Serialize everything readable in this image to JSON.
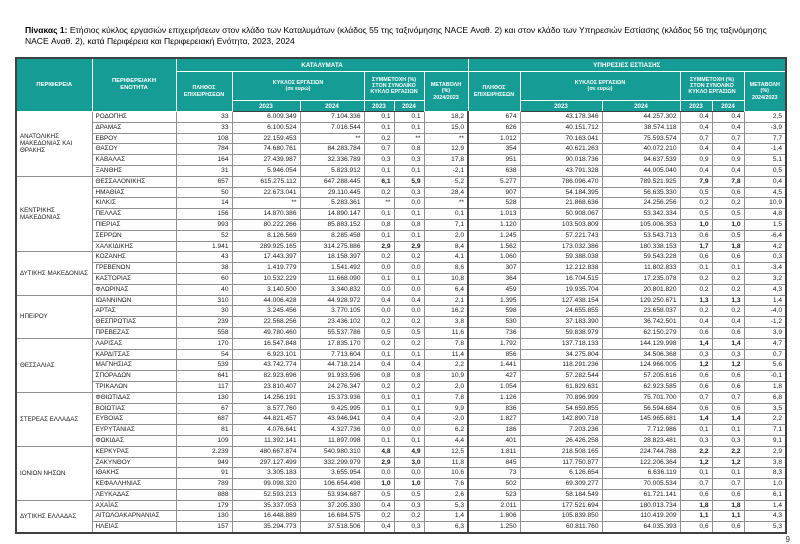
{
  "title": {
    "label": "Πίνακας 1:",
    "text": " Ετήσιος κύκλος εργασιών επιχειρήσεων στον κλάδο των Καταλυμάτων (κλάδος 55 της ταξινόμησης NACE Αναθ. 2) και στον κλάδο των Υπηρεσιών Εστίασης (κλάδος 56 της ταξινόμησης NACE Αναθ. 2), κατά Περιφέρεια και Περιφερειακή Ενότητα, 2023, 2024"
  },
  "page_number": "9",
  "accent_color": "#149c95",
  "table": {
    "headers": {
      "region": "ΠΕΡΙΦΕΡΕΙΑ",
      "unit": "ΠΕΡΙΦΕΡΕΙΑΚΗ\nΕΝΟΤΗΤΑ",
      "group_accommodation": "ΚΑΤΑΛΥΜΑΤΑ",
      "group_food": "ΥΠΗΡΕΣΙΕΣ ΕΣΤΙΑΣΗΣ",
      "count": "ΠΛΗΘΟΣ\nΕΠΙΧΕΙΡΗΣΕΩΝ",
      "turnover": "ΚΥΚΛΟΣ ΕΡΓΑΣΙΩΝ\n(σε ευρώ)",
      "share": "ΣΥΜΜΕΤΟΧΗ (%)\nΣΤΟΝ ΣΥΝΟΛΙΚΟ\nΚΥΚΛΟ ΕΡΓΑΣΙΩΝ",
      "change": "ΜΕΤΑΒΟΛΗ\n(%)\n2024/2023",
      "y2023": "2023",
      "y2024": "2024"
    },
    "groups": [
      {
        "region": "ΑΝΑΤΟΛΙΚΗΣ ΜΑΚΕΔΟΝΙΑΣ ΚΑΙ ΘΡΑΚΗΣ",
        "rows": [
          {
            "unit": "ΡΟΔΟΠΗΣ",
            "acc": [
              "33",
              "6.009.349",
              "7.104.336",
              "0,1",
              "0,1",
              "18,2"
            ],
            "food": [
              "674",
              "43.178.346",
              "44.257.302",
              "0,4",
              "0,4",
              "2,5"
            ]
          },
          {
            "unit": "ΔΡΑΜΑΣ",
            "acc": [
              "33",
              "6.100.524",
              "7.016.544",
              "0,1",
              "0,1",
              "15,0"
            ],
            "food": [
              "626",
              "40.151.712",
              "38.574.118",
              "0,4",
              "0,4",
              "-3,9"
            ]
          },
          {
            "unit": "ΕΒΡΟΥ",
            "acc": [
              "108",
              "22.159.453",
              "**",
              "0,2",
              "**",
              "**"
            ],
            "food": [
              "1.012",
              "70.163.041",
              "75.593.574",
              "0,7",
              "0,7",
              "7,7"
            ]
          },
          {
            "unit": "ΘΑΣΟΥ",
            "acc": [
              "784",
              "74.680.761",
              "84.283.784",
              "0,7",
              "0,8",
              "12,9"
            ],
            "food": [
              "354",
              "40.621.263",
              "40.072.210",
              "0,4",
              "0,4",
              "-1,4"
            ]
          },
          {
            "unit": "ΚΑΒΑΛΑΣ",
            "acc": [
              "164",
              "27.439.987",
              "32.336.789",
              "0,3",
              "0,3",
              "17,8"
            ],
            "food": [
              "951",
              "90.018.736",
              "94.637.539",
              "0,9",
              "0,9",
              "5,1"
            ]
          },
          {
            "unit": "ΞΑΝΘΗΣ",
            "acc": [
              "31",
              "5.946.054",
              "5.823.912",
              "0,1",
              "0,1",
              "-2,1"
            ],
            "food": [
              "638",
              "43.791.328",
              "44.005.040",
              "0,4",
              "0,4",
              "0,5"
            ]
          }
        ]
      },
      {
        "region": "ΚΕΝΤΡΙΚΗΣ ΜΑΚΕΔΟΝΙΑΣ",
        "rows": [
          {
            "unit": "ΘΕΣΣΑΛΟΝΙΚΗΣ",
            "acc": [
              "657",
              "615.275.112",
              "647.288.445",
              "6,1",
              "5,9",
              "5,2"
            ],
            "food": [
              "5.277",
              "786.096.470",
              "789.521.925",
              "7,9",
              "7,8",
              "0,4"
            ]
          },
          {
            "unit": "ΗΜΑΘΙΑΣ",
            "acc": [
              "50",
              "22.673.041",
              "29.110.445",
              "0,2",
              "0,3",
              "28,4"
            ],
            "food": [
              "907",
              "54.184.395",
              "56.635.330",
              "0,5",
              "0,6",
              "4,5"
            ]
          },
          {
            "unit": "ΚΙΛΚΙΣ",
            "acc": [
              "14",
              "**",
              "5.283.361",
              "**",
              "0,0",
              "**"
            ],
            "food": [
              "528",
              "21.868.636",
              "24.256.256",
              "0,2",
              "0,2",
              "10,9"
            ]
          },
          {
            "unit": "ΠΕΛΛΑΣ",
            "acc": [
              "156",
              "14.870.386",
              "14.890.147",
              "0,1",
              "0,1",
              "0,1"
            ],
            "food": [
              "1.013",
              "50.908.067",
              "53.342.334",
              "0,5",
              "0,5",
              "4,8"
            ]
          },
          {
            "unit": "ΠΙΕΡΙΑΣ",
            "acc": [
              "993",
              "80.222.266",
              "85.883.152",
              "0,8",
              "0,8",
              "7,1"
            ],
            "food": [
              "1.120",
              "103.503.809",
              "105.006.353",
              "1,0",
              "1,0",
              "1,5"
            ]
          },
          {
            "unit": "ΣΕΡΡΩΝ",
            "acc": [
              "52",
              "8.126.569",
              "8.285.458",
              "0,1",
              "0,1",
              "2,0"
            ],
            "food": [
              "1.245",
              "57.221.743",
              "53.543.713",
              "0,6",
              "0,5",
              "-6,4"
            ]
          },
          {
            "unit": "ΧΑΛΚΙΔΙΚΗΣ",
            "acc": [
              "1.941",
              "289.925.165",
              "314.275.886",
              "2,9",
              "2,9",
              "8,4"
            ],
            "food": [
              "1.562",
              "173.032.386",
              "180.338.153",
              "1,7",
              "1,8",
              "4,2"
            ]
          }
        ]
      },
      {
        "region": "ΔΥΤΙΚΗΣ ΜΑΚΕΔΟΝΙΑΣ",
        "rows": [
          {
            "unit": "ΚΟΖΑΝΗΣ",
            "acc": [
              "43",
              "17.443.397",
              "18.158.397",
              "0,2",
              "0,2",
              "4,1"
            ],
            "food": [
              "1.060",
              "59.388.038",
              "59.543.228",
              "0,6",
              "0,6",
              "0,3"
            ]
          },
          {
            "unit": "ΓΡΕΒΕΝΩΝ",
            "acc": [
              "38",
              "1.419.779",
              "1.541.492",
              "0,0",
              "0,0",
              "8,6"
            ],
            "food": [
              "307",
              "12.212.838",
              "11.802.833",
              "0,1",
              "0,1",
              "-3,4"
            ]
          },
          {
            "unit": "ΚΑΣΤΟΡΙΑΣ",
            "acc": [
              "60",
              "10.532.229",
              "11.668.090",
              "0,1",
              "0,1",
              "10,8"
            ],
            "food": [
              "364",
              "16.704.515",
              "17.235.078",
              "0,2",
              "0,2",
              "3,2"
            ]
          },
          {
            "unit": "ΦΛΩΡΙΝΑΣ",
            "acc": [
              "40",
              "3.140.500",
              "3.340.832",
              "0,0",
              "0,0",
              "6,4"
            ],
            "food": [
              "459",
              "19.935.704",
              "20.801.820",
              "0,2",
              "0,2",
              "4,3"
            ]
          }
        ]
      },
      {
        "region": "ΗΠΕΙΡΟΥ",
        "rows": [
          {
            "unit": "ΙΩΑΝΝΙΝΩΝ",
            "acc": [
              "310",
              "44.006.428",
              "44.928.972",
              "0,4",
              "0,4",
              "2,1"
            ],
            "food": [
              "1.395",
              "127.438.154",
              "129.250.671",
              "1,3",
              "1,3",
              "1,4"
            ]
          },
          {
            "unit": "ΑΡΤΑΣ",
            "acc": [
              "30",
              "3.245.456",
              "3.770.105",
              "0,0",
              "0,0",
              "16,2"
            ],
            "food": [
              "598",
              "24.655.855",
              "23.658.037",
              "0,2",
              "0,2",
              "-4,0"
            ]
          },
          {
            "unit": "ΘΕΣΠΡΩΤΙΑΣ",
            "acc": [
              "239",
              "22.568.256",
              "23.436.102",
              "0,2",
              "0,2",
              "3,8"
            ],
            "food": [
              "530",
              "37.183.390",
              "36.742.501",
              "0,4",
              "0,4",
              "-1,2"
            ]
          },
          {
            "unit": "ΠΡΕΒΕΖΑΣ",
            "acc": [
              "558",
              "49.780.460",
              "55.537.786",
              "0,5",
              "0,5",
              "11,6"
            ],
            "food": [
              "736",
              "59.838.979",
              "62.150.279",
              "0,6",
              "0,6",
              "3,9"
            ]
          }
        ]
      },
      {
        "region": "ΘΕΣΣΑΛΙΑΣ",
        "rows": [
          {
            "unit": "ΛΑΡΙΣΑΣ",
            "acc": [
              "170",
              "16.547.848",
              "17.835.170",
              "0,2",
              "0,2",
              "7,8"
            ],
            "food": [
              "1.792",
              "137.718.133",
              "144.129.998",
              "1,4",
              "1,4",
              "4,7"
            ]
          },
          {
            "unit": "ΚΑΡΔΙΤΣΑΣ",
            "acc": [
              "54",
              "6.923.101",
              "7.713.604",
              "0,1",
              "0,1",
              "11,4"
            ],
            "food": [
              "856",
              "34.275.804",
              "34.506.368",
              "0,3",
              "0,3",
              "0,7"
            ]
          },
          {
            "unit": "ΜΑΓΝΗΣΙΑΣ",
            "acc": [
              "539",
              "43.742.774",
              "44.718.214",
              "0,4",
              "0,4",
              "2,2"
            ],
            "food": [
              "1.441",
              "118.291.236",
              "124.966.005",
              "1,2",
              "1,2",
              "5,6"
            ]
          },
          {
            "unit": "ΣΠΟΡΑΔΩΝ",
            "acc": [
              "641",
              "82.923.696",
              "91.933.596",
              "0,8",
              "0,8",
              "10,9"
            ],
            "food": [
              "427",
              "57.282.544",
              "57.205.616",
              "0,6",
              "0,6",
              "-0,1"
            ]
          },
          {
            "unit": "ΤΡΙΚΑΛΩΝ",
            "acc": [
              "117",
              "23.810.407",
              "24.276.347",
              "0,2",
              "0,2",
              "2,0"
            ],
            "food": [
              "1.054",
              "61.829.631",
              "62.923.585",
              "0,6",
              "0,6",
              "1,8"
            ]
          }
        ]
      },
      {
        "region": "ΣΤΕΡΕΑΣ ΕΛΛΑΔΑΣ",
        "rows": [
          {
            "unit": "ΦΘΙΩΤΙΔΑΣ",
            "acc": [
              "130",
              "14.256.191",
              "15.373.936",
              "0,1",
              "0,1",
              "7,8"
            ],
            "food": [
              "1.126",
              "70.896.999",
              "75.701.700",
              "0,7",
              "0,7",
              "6,8"
            ]
          },
          {
            "unit": "ΒΟΙΩΤΙΑΣ",
            "acc": [
              "67",
              "8.577.760",
              "9.425.995",
              "0,1",
              "0,1",
              "9,9"
            ],
            "food": [
              "836",
              "54.659.855",
              "56.594.684",
              "0,6",
              "0,6",
              "3,5"
            ]
          },
          {
            "unit": "ΕΥΒΟΙΑΣ",
            "acc": [
              "687",
              "44.821.457",
              "43.946.941",
              "0,4",
              "0,4",
              "-2,0"
            ],
            "food": [
              "1.827",
              "142.890.718",
              "145.965.681",
              "1,4",
              "1,4",
              "2,2"
            ]
          },
          {
            "unit": "ΕΥΡΥΤΑΝΙΑΣ",
            "acc": [
              "81",
              "4.076.641",
              "4.327.736",
              "0,0",
              "0,0",
              "6,2"
            ],
            "food": [
              "186",
              "7.203.236",
              "7.712.986",
              "0,1",
              "0,1",
              "7,1"
            ]
          },
          {
            "unit": "ΦΩΚΙΔΑΣ",
            "acc": [
              "109",
              "11.392.141",
              "11.897.098",
              "0,1",
              "0,1",
              "4,4"
            ],
            "food": [
              "401",
              "26.426.258",
              "28.823.481",
              "0,3",
              "0,3",
              "9,1"
            ]
          }
        ]
      },
      {
        "region": "ΙΟΝΙΩΝ ΝΗΣΩΝ",
        "rows": [
          {
            "unit": "ΚΕΡΚΥΡΑΣ",
            "acc": [
              "2.239",
              "480.667.874",
              "540.980.310",
              "4,8",
              "4,9",
              "12,5"
            ],
            "food": [
              "1.811",
              "218.508.165",
              "224.744.788",
              "2,2",
              "2,2",
              "2,9"
            ]
          },
          {
            "unit": "ΖΑΚΥΝΘΟΥ",
            "acc": [
              "949",
              "297.127.499",
              "332.299.979",
              "2,9",
              "3,0",
              "11,8"
            ],
            "food": [
              "845",
              "117.750.877",
              "122.206.364",
              "1,2",
              "1,2",
              "3,8"
            ]
          },
          {
            "unit": "ΙΘΑΚΗΣ",
            "acc": [
              "91",
              "3.305.183",
              "3.655.954",
              "0,0",
              "0,0",
              "10,6"
            ],
            "food": [
              "73",
              "6.126.654",
              "6.636.119",
              "0,1",
              "0,1",
              "8,3"
            ]
          },
          {
            "unit": "ΚΕΦΑΛΛΗΝΙΑΣ",
            "acc": [
              "789",
              "99.098.320",
              "106.654.498",
              "1,0",
              "1,0",
              "7,6"
            ],
            "food": [
              "502",
              "69.309.277",
              "70.005.534",
              "0,7",
              "0,7",
              "1,0"
            ]
          },
          {
            "unit": "ΛΕΥΚΑΔΑΣ",
            "acc": [
              "888",
              "52.593.213",
              "53.934.687",
              "0,5",
              "0,5",
              "2,6"
            ],
            "food": [
              "523",
              "58.184.549",
              "61.721.141",
              "0,6",
              "0,6",
              "6,1"
            ]
          }
        ]
      },
      {
        "region": "ΔΥΤΙΚΗΣ ΕΛΛΑΔΑΣ",
        "rows": [
          {
            "unit": "ΑΧΑΪΑΣ",
            "acc": [
              "179",
              "35.337.053",
              "37.205.330",
              "0,4",
              "0,3",
              "5,3"
            ],
            "food": [
              "2.011",
              "177.521.694",
              "180.013.734",
              "1,8",
              "1,8",
              "1,4"
            ]
          },
          {
            "unit": "ΑΙΤΩΛΟΑΚΑΡΝΑΝΙΑΣ",
            "acc": [
              "130",
              "16.448.889",
              "16.684.575",
              "0,2",
              "0,2",
              "1,4"
            ],
            "food": [
              "1.806",
              "105.839.850",
              "110.419.209",
              "1,1",
              "1,1",
              "4,3"
            ]
          },
          {
            "unit": "ΗΛΕΙΑΣ",
            "acc": [
              "157",
              "35.294.773",
              "37.518.506",
              "0,4",
              "0,3",
              "6,3"
            ],
            "food": [
              "1.250",
              "60.811.760",
              "64.035.393",
              "0,6",
              "0,6",
              "5,3"
            ]
          }
        ]
      }
    ]
  }
}
